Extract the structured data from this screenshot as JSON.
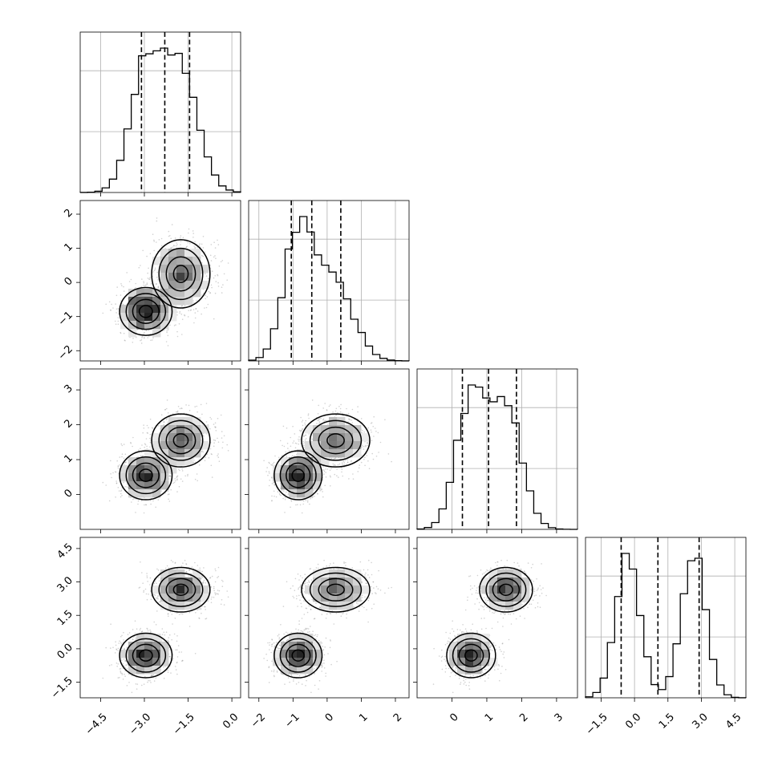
{
  "chart_data": {
    "type": "corner",
    "n_params": 4,
    "colors": {
      "line": "#000000",
      "points": "#9a9a9a",
      "grid": "#b0b0b0"
    },
    "params": [
      {
        "lim": [
          -5.2,
          0.3
        ],
        "ticks": [
          -4.5,
          -3.0,
          -1.5,
          0.0
        ],
        "tick_labels": [
          "−4.5",
          "−3.0",
          "−1.5",
          "0.0"
        ],
        "quantiles": [
          -3.1,
          -2.3,
          -1.45
        ],
        "modes": [
          {
            "w": 0.5,
            "m": -2.9,
            "s": 0.55
          },
          {
            "w": 0.5,
            "m": -1.75,
            "s": 0.6
          }
        ]
      },
      {
        "lim": [
          -2.3,
          2.4
        ],
        "ticks": [
          -2,
          -1,
          0,
          1,
          2
        ],
        "tick_labels": [
          "−2",
          "−1",
          "0",
          "1",
          "2"
        ],
        "quantiles": [
          -1.05,
          -0.45,
          0.4
        ],
        "modes": [
          {
            "w": 0.55,
            "m": -0.85,
            "s": 0.42
          },
          {
            "w": 0.45,
            "m": 0.2,
            "s": 0.55
          }
        ]
      },
      {
        "lim": [
          -1.0,
          3.6
        ],
        "ticks": [
          0,
          1,
          2,
          3
        ],
        "tick_labels": [
          "0",
          "1",
          "2",
          "3"
        ],
        "quantiles": [
          0.3,
          1.05,
          1.85
        ],
        "modes": [
          {
            "w": 0.5,
            "m": 0.55,
            "s": 0.42
          },
          {
            "w": 0.5,
            "m": 1.55,
            "s": 0.45
          }
        ]
      },
      {
        "lim": [
          -2.2,
          5.0
        ],
        "ticks": [
          -1.5,
          0.0,
          1.5,
          3.0,
          4.5
        ],
        "tick_labels": [
          "−1.5",
          "0.0",
          "1.5",
          "3.0",
          "4.5"
        ],
        "quantiles": [
          -0.6,
          1.05,
          2.9
        ],
        "modes": [
          {
            "w": 0.5,
            "m": -0.3,
            "s": 0.55
          },
          {
            "w": 0.5,
            "m": 2.65,
            "s": 0.55
          }
        ]
      }
    ],
    "joint_clusters": [
      {
        "weight": 0.5,
        "mean": [
          -2.95,
          -0.85,
          0.55,
          -0.3
        ],
        "sd": [
          0.45,
          0.35,
          0.35,
          0.5
        ]
      },
      {
        "weight": 0.5,
        "mean": [
          -1.75,
          0.25,
          1.55,
          2.65
        ],
        "sd": [
          0.5,
          0.5,
          0.38,
          0.5
        ]
      }
    ]
  }
}
